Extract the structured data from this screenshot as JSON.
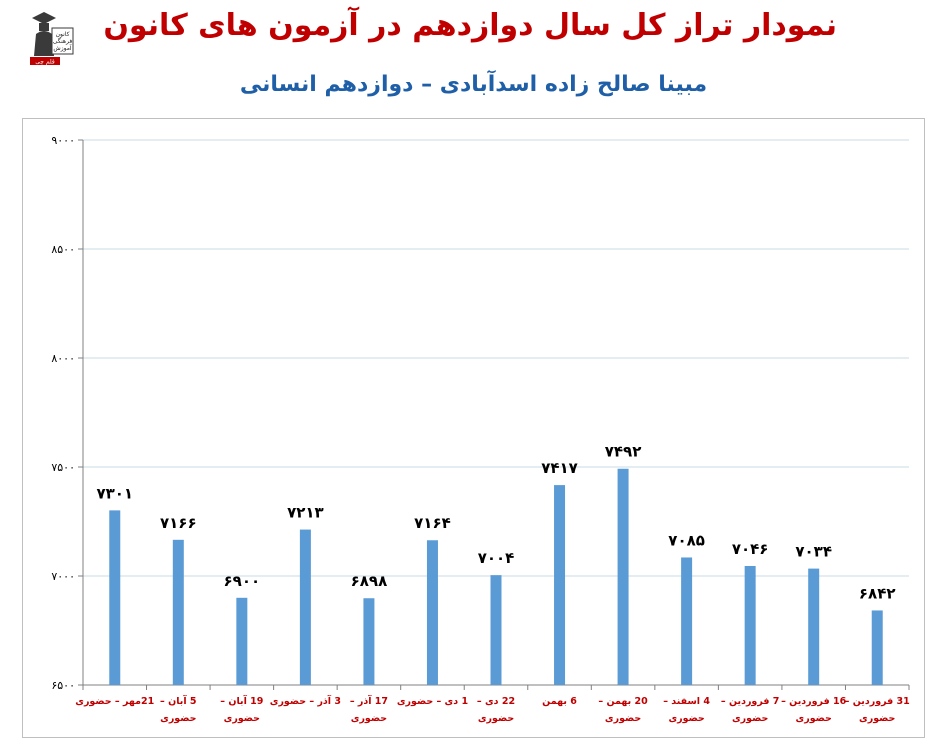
{
  "header": {
    "title": "نمودار تراز کل سال دوازدهم در آزمون های کانون",
    "subtitle": "مبینا صالح زاده اسدآبادی – دوازدهم انسانی"
  },
  "logo": {
    "text_lines": [
      "کانون",
      "فرهنگی",
      "آموزش"
    ],
    "badge": "قلم چی",
    "colors": {
      "figure": "#3a3a3a",
      "badge": "#c00000"
    }
  },
  "colors": {
    "title": "#c00000",
    "subtitle": "#1f5fa8",
    "bar": "#5b9bd5",
    "grid": "#c9dbe6",
    "category_label": "#c00000"
  },
  "chart_data": {
    "type": "bar",
    "title": "نمودار تراز کل سال دوازدهم در آزمون های کانون",
    "subtitle": "مبینا صالح زاده اسدآبادی – دوازدهم انسانی",
    "ylim": [
      6500,
      9000
    ],
    "y_ticks": [
      6500,
      7000,
      7500,
      8000,
      8500,
      9000
    ],
    "y_tick_labels": [
      "۶۵۰۰",
      "۷۰۰۰",
      "۷۵۰۰",
      "۸۰۰۰",
      "۸۵۰۰",
      "۹۰۰۰"
    ],
    "grid": true,
    "categories": [
      [
        "21مهر – حضوری"
      ],
      [
        "5 آبان –",
        "حضوری"
      ],
      [
        "19 آبان –",
        "حضوری"
      ],
      [
        "3 آذر – حضوری"
      ],
      [
        "17 آذر –",
        "حضوری"
      ],
      [
        "1 دی – حضوری"
      ],
      [
        "22 دی –",
        "حضوری"
      ],
      [
        "6 بهمن"
      ],
      [
        "20 بهمن –",
        "حضوری"
      ],
      [
        "4 اسفند –",
        "حضوری"
      ],
      [
        "7 فروردین –",
        "حضوری"
      ],
      [
        "16 فروردین –",
        "حضوری"
      ],
      [
        "31 فروردین –",
        "حضوری"
      ]
    ],
    "values": [
      7301,
      7166,
      6900,
      7213,
      6898,
      7164,
      7004,
      7417,
      7492,
      7085,
      7046,
      7034,
      6842
    ],
    "value_labels": [
      "۷۳۰۱",
      "۷۱۶۶",
      "۶۹۰۰",
      "۷۲۱۳",
      "۶۸۹۸",
      "۷۱۶۴",
      "۷۰۰۴",
      "۷۴۱۷",
      "۷۴۹۲",
      "۷۰۸۵",
      "۷۰۴۶",
      "۷۰۳۴",
      "۶۸۴۲"
    ]
  }
}
